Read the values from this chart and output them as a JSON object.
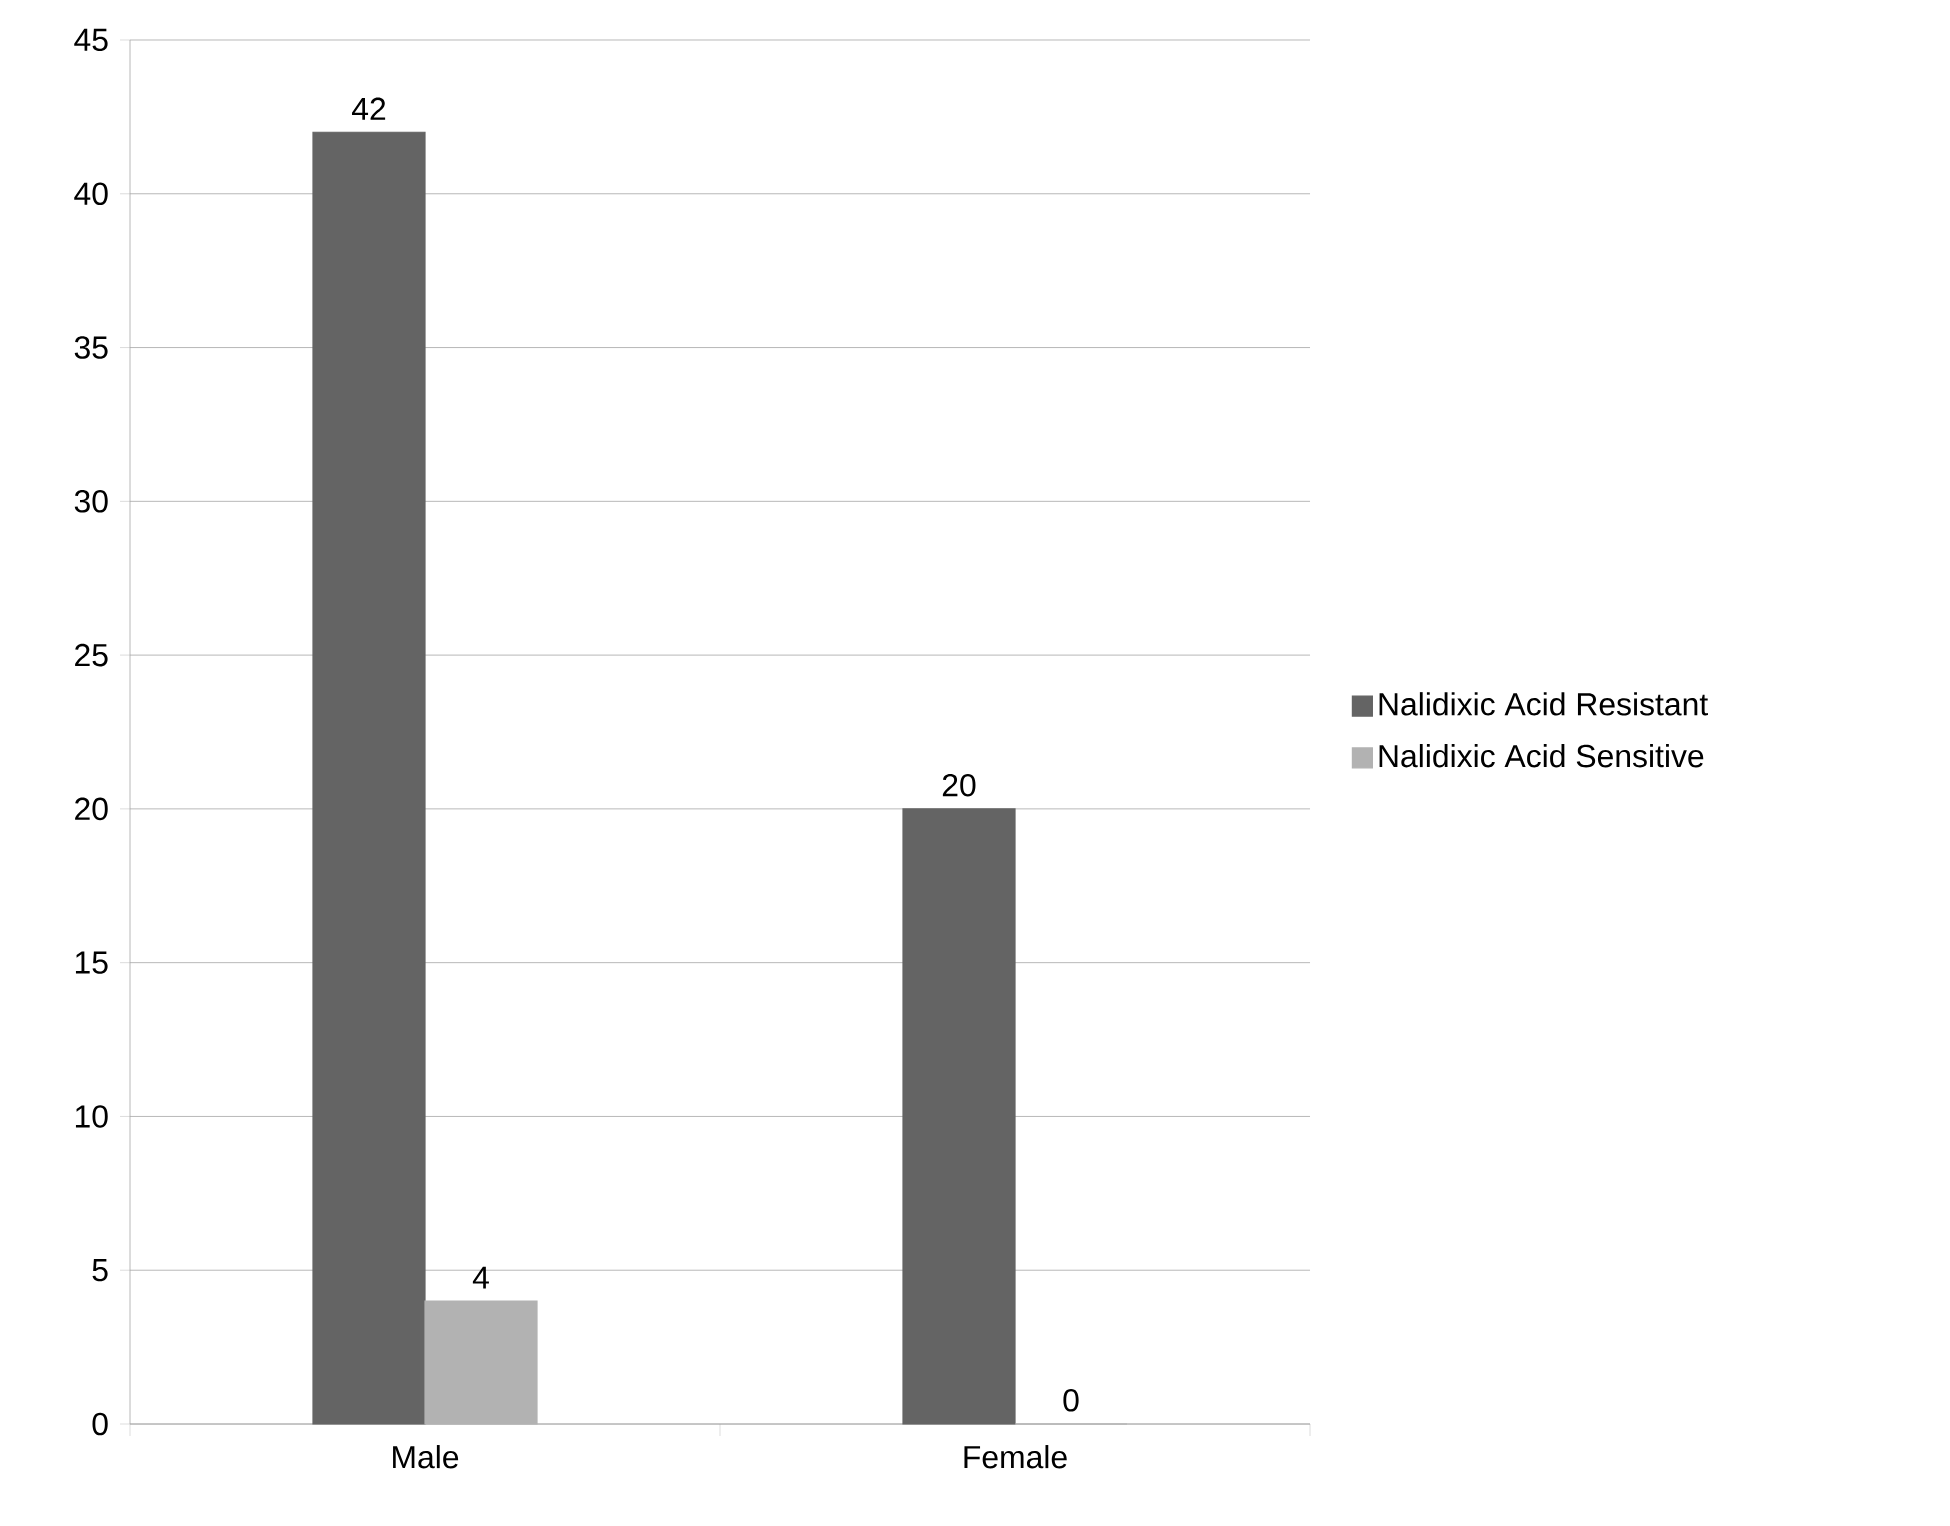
{
  "chart_data": {
    "type": "bar",
    "categories": [
      "Male",
      "Female"
    ],
    "series": [
      {
        "name": "Nalidixic Acid Resistant",
        "color": "#646464",
        "values": [
          42,
          20
        ]
      },
      {
        "name": "Nalidixic Acid Sensitive",
        "color": "#b2b2b2",
        "values": [
          4,
          0
        ]
      }
    ],
    "ylim": [
      0,
      45
    ],
    "yticks": [
      0,
      5,
      10,
      15,
      20,
      25,
      30,
      35,
      40,
      45
    ],
    "grid": "y",
    "legend": "right",
    "data_labels": true
  }
}
